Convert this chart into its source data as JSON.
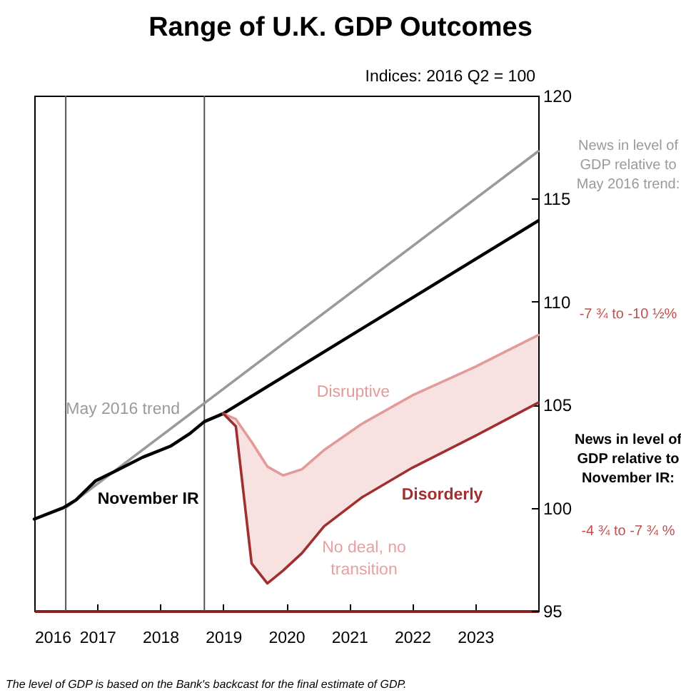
{
  "chart_data": {
    "type": "line",
    "title": "Range of U.K. GDP Outcomes",
    "subtitle": "Indices: 2016 Q2 = 100",
    "series": [
      {
        "name": "May 2016 trend",
        "color": "#9a9a9a",
        "x": [
          2016.5,
          2024
        ],
        "values": [
          100,
          117.3
        ]
      },
      {
        "name": "November IR",
        "color": "#000000",
        "x": [
          2016.0,
          2016.46,
          2016.66,
          2016.97,
          2017.27,
          2017.72,
          2018.17,
          2018.47,
          2018.7,
          2019.0,
          2024
        ],
        "values": [
          99.45,
          100.0,
          100.37,
          101.3,
          101.75,
          102.45,
          103.0,
          103.6,
          104.18,
          104.57,
          113.93
        ]
      },
      {
        "name": "Disruptive",
        "color": "#e39a9a",
        "x": [
          2019.0,
          2019.2,
          2019.45,
          2019.7,
          2019.95,
          2020.25,
          2020.6,
          2021.2,
          2022,
          2023,
          2024
        ],
        "values": [
          104.57,
          104.3,
          103.2,
          102.0,
          101.57,
          101.87,
          102.8,
          104.07,
          105.45,
          106.84,
          108.38
        ],
        "lower": [
          104.57,
          103.95,
          97.3,
          96.33,
          96.95,
          97.8,
          99.1,
          100.5,
          101.94,
          103.49,
          105.1
        ],
        "upper": [
          104.57,
          104.3,
          103.2,
          102.0,
          101.57,
          101.87,
          102.8,
          104.07,
          105.45,
          106.84,
          108.38
        ]
      },
      {
        "name": "Disorderly",
        "color": "#a0302f",
        "x": [
          2019.0,
          2019.2,
          2019.45,
          2019.7,
          2019.95,
          2020.25,
          2020.6,
          2021.2,
          2022,
          2023,
          2024
        ],
        "values": [
          104.57,
          103.95,
          97.3,
          96.33,
          96.95,
          97.8,
          99.1,
          100.5,
          101.94,
          103.49,
          105.1
        ]
      }
    ],
    "xlim": [
      2016,
      2024
    ],
    "xticks": [
      2016,
      2017,
      2018,
      2019,
      2020,
      2021,
      2022,
      2023
    ],
    "ylim": [
      95,
      120
    ],
    "yticks": [
      95,
      100,
      105,
      110,
      115,
      120
    ],
    "ref_lines": [
      {
        "axis": "x",
        "value": 2016.5,
        "color": "#555555"
      },
      {
        "axis": "x",
        "value": 2018.7,
        "color": "#555555"
      }
    ],
    "annotations": [
      "News in level of GDP relative to May 2016 trend:",
      "-7 ¾ to -10 ½%",
      "News in level of GDP relative to November IR:",
      "-4 ¾  to -7 ¾ %",
      "The level of GDP is based on the Bank's backcast for the final estimate of GDP.",
      "No deal, no transition"
    ],
    "grid": false,
    "legend": false
  }
}
